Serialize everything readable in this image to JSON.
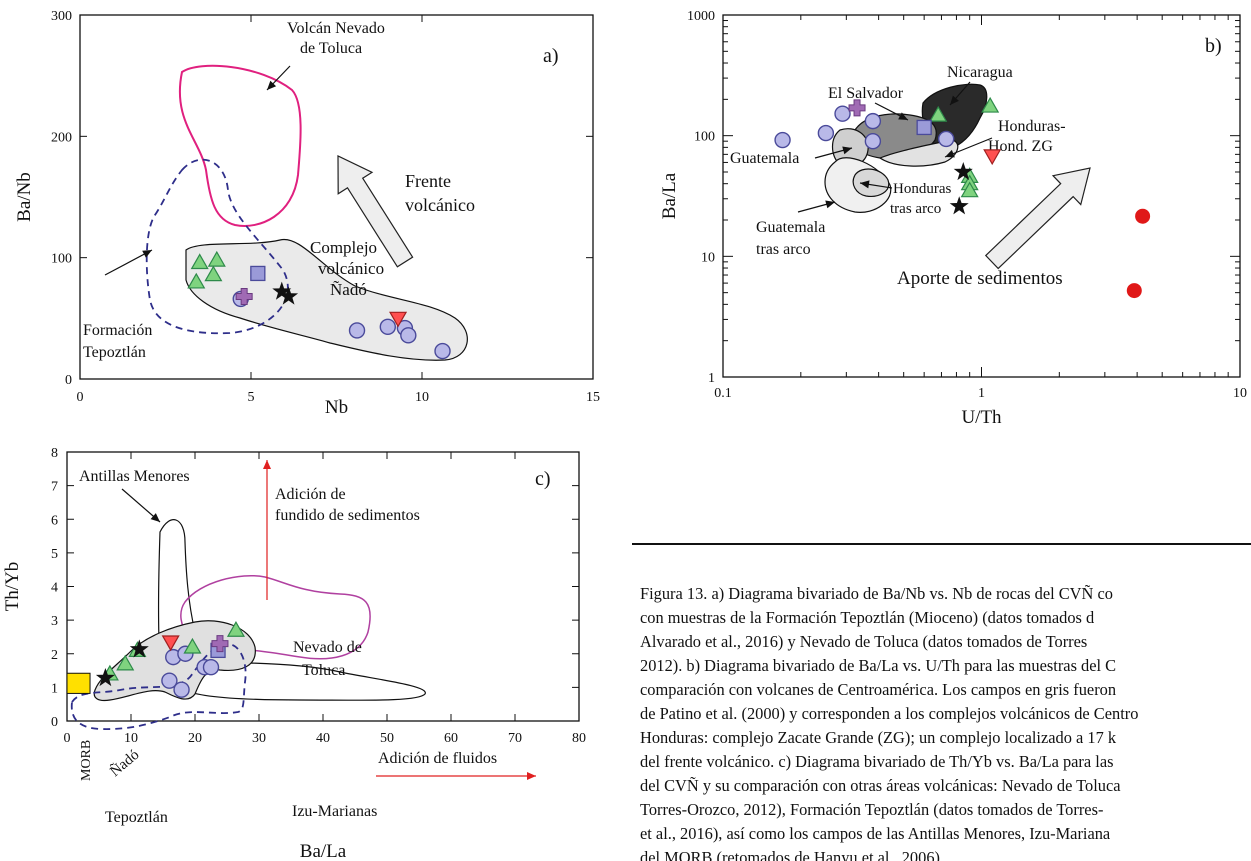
{
  "panel_a": {
    "panel_label": "a)",
    "xlabel": "Nb",
    "ylabel": "Ba/Nb",
    "xticks": [
      "0",
      "5",
      "10",
      "15"
    ],
    "yticks": [
      "0",
      "100",
      "200",
      "300"
    ],
    "annotations": {
      "toluca": [
        "Volcán Nevado",
        "de Toluca"
      ],
      "frente": [
        "Frente",
        "volcánico"
      ],
      "complejo": [
        "Complejo",
        "volcánico",
        "Ñadó"
      ],
      "tepoztlan": [
        "Formación",
        "Tepoztlán"
      ]
    }
  },
  "panel_b": {
    "panel_label": "b)",
    "xlabel": "U/Th",
    "ylabel": "Ba/La",
    "xticks": [
      "0.1",
      "1",
      "10"
    ],
    "yticks": [
      "1",
      "10",
      "100",
      "1000"
    ],
    "annotations": {
      "nicaragua": "Nicaragua",
      "el_salvador": "El Salvador",
      "honduras": [
        "Honduras-",
        "Hond. ZG"
      ],
      "guatemala": "Guatemala",
      "honduras_tras": [
        "Honduras",
        "tras arco"
      ],
      "guatemala_tras": [
        "Guatemala",
        "tras arco"
      ],
      "aporte": "Aporte de sedimentos"
    }
  },
  "panel_c": {
    "panel_label": "c)",
    "xlabel": "Ba/La",
    "ylabel": "Th/Yb",
    "xticks": [
      "0",
      "10",
      "20",
      "30",
      "40",
      "50",
      "60",
      "70",
      "80"
    ],
    "yticks": [
      "0",
      "1",
      "2",
      "3",
      "4",
      "5",
      "6",
      "7",
      "8"
    ],
    "annotations": {
      "antillas": "Antillas Menores",
      "adicion_sed": [
        "Adición de",
        "fundido de sedimentos"
      ],
      "toluca": [
        "Nevado de",
        "Toluca"
      ],
      "fluidos": "Adición de fluidos",
      "izu": "Izu-Marianas",
      "morb": "MORB",
      "nado": "Ñadó",
      "tepoztlan": "Tepoztlán"
    }
  },
  "colors": {
    "circle_fill": "#b9b9e8",
    "circle_stroke": "#4a4a9a",
    "triangle_green": "#7fd37f",
    "triangle_red": "#ff5050",
    "plus_purple": "#a06ab4",
    "square": "#9a9ad8",
    "magenta": "#e0207f",
    "dashed_blue": "#2e2e8a",
    "red_dot": "#e01818",
    "morb_yellow": "#ffe000"
  },
  "caption": {
    "lines": [
      "Figura 13. a) Diagrama bivariado de Ba/Nb vs. Nb de rocas del CVÑ co",
      "con muestras de la Formación Tepoztlán (Mioceno) (datos tomados d",
      "Alvarado et al., 2016) y Nevado de Toluca (datos tomados de Torres",
      "2012). b) Diagrama bivariado de Ba/La vs. U/Th para las muestras del C",
      "comparación con volcanes de Centroamérica. Los campos en gris fueron",
      "de Patino et al. (2000) y corresponden a los complejos volcánicos de Centro",
      "Honduras: complejo Zacate Grande (ZG); un complejo localizado a 17 k",
      "del frente volcánico. c) Diagrama bivariado de Th/Yb vs. Ba/La para las",
      "del CVÑ y su comparación con otras áreas volcánicas: Nevado de Toluca",
      "Torres-Orozco, 2012), Formación Tepoztlán (datos tomados de Torres-",
      "et al., 2016), así como los campos de las Antillas Menores, Izu-Mariana",
      "del MORB (retomados de Hanyu et al., 2006)."
    ]
  },
  "chart_data": [
    {
      "type": "scatter",
      "xlabel": "Nb",
      "ylabel": "Ba/Nb",
      "xlim": [
        0,
        15
      ],
      "ylim": [
        0,
        300
      ],
      "series": [
        {
          "marker": "circle",
          "points": [
            [
              4.7,
              66
            ],
            [
              8.1,
              40
            ],
            [
              9.0,
              43
            ],
            [
              9.5,
              42
            ],
            [
              9.6,
              36
            ],
            [
              10.6,
              23
            ]
          ]
        },
        {
          "marker": "triangle-green",
          "points": [
            [
              3.5,
              96
            ],
            [
              4.0,
              98
            ],
            [
              3.9,
              86
            ],
            [
              3.4,
              80
            ]
          ]
        },
        {
          "marker": "triangle-red",
          "points": [
            [
              9.3,
              50
            ]
          ]
        },
        {
          "marker": "square",
          "points": [
            [
              5.2,
              87
            ]
          ]
        },
        {
          "marker": "plus",
          "points": [
            [
              4.8,
              68
            ]
          ]
        },
        {
          "marker": "star",
          "points": [
            [
              5.9,
              72
            ],
            [
              6.1,
              68
            ]
          ]
        }
      ]
    },
    {
      "type": "scatter",
      "xlabel": "U/Th",
      "ylabel": "Ba/La",
      "xscale": "log",
      "yscale": "log",
      "xlim": [
        0.1,
        10
      ],
      "ylim": [
        1,
        1000
      ],
      "series": [
        {
          "marker": "circle",
          "points": [
            [
              0.17,
              92
            ],
            [
              0.25,
              105
            ],
            [
              0.29,
              152
            ],
            [
              0.38,
              132
            ],
            [
              0.38,
              90
            ],
            [
              0.73,
              94
            ]
          ]
        },
        {
          "marker": "triangle-green",
          "points": [
            [
              0.68,
              148
            ],
            [
              1.08,
              176
            ],
            [
              0.9,
              46
            ],
            [
              0.9,
              40
            ],
            [
              0.9,
              35
            ]
          ]
        },
        {
          "marker": "triangle-red",
          "points": [
            [
              1.1,
              68
            ]
          ]
        },
        {
          "marker": "square",
          "points": [
            [
              0.6,
              117
            ]
          ]
        },
        {
          "marker": "plus",
          "points": [
            [
              0.33,
              170
            ]
          ]
        },
        {
          "marker": "star",
          "points": [
            [
              0.85,
              50
            ],
            [
              0.82,
              26
            ]
          ]
        },
        {
          "marker": "red-dot",
          "points": [
            [
              4.2,
              21.5
            ],
            [
              3.9,
              5.2
            ]
          ]
        }
      ]
    },
    {
      "type": "scatter",
      "xlabel": "Ba/La",
      "ylabel": "Th/Yb",
      "xlim": [
        0,
        80
      ],
      "ylim": [
        0,
        8
      ],
      "series": [
        {
          "marker": "circle",
          "points": [
            [
              16,
              1.2
            ],
            [
              16.6,
              1.9
            ],
            [
              18.5,
              2.0
            ],
            [
              21.5,
              1.6
            ],
            [
              22.5,
              1.6
            ],
            [
              17.9,
              0.93
            ]
          ]
        },
        {
          "marker": "triangle-green",
          "points": [
            [
              6.7,
              1.4
            ],
            [
              9.1,
              1.7
            ],
            [
              11,
              2.1
            ],
            [
              19.6,
              2.2
            ],
            [
              26.4,
              2.7
            ]
          ]
        },
        {
          "marker": "triangle-red",
          "points": [
            [
              16.2,
              2.35
            ]
          ]
        },
        {
          "marker": "square",
          "points": [
            [
              23.6,
              2.1
            ]
          ]
        },
        {
          "marker": "plus",
          "points": [
            [
              23.9,
              2.3
            ]
          ]
        },
        {
          "marker": "star",
          "points": [
            [
              11.3,
              2.13
            ],
            [
              6,
              1.28
            ]
          ]
        }
      ]
    }
  ]
}
